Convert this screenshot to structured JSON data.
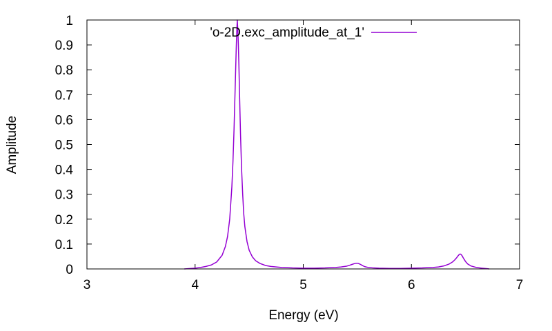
{
  "chart_data": {
    "type": "line",
    "title": "",
    "xlabel": "Energy (eV)",
    "ylabel": "Amplitude",
    "xlim": [
      3,
      7
    ],
    "ylim": [
      0,
      1
    ],
    "x_ticks": [
      3,
      4,
      5,
      6,
      7
    ],
    "y_ticks": [
      0,
      0.1,
      0.2,
      0.3,
      0.4,
      0.5,
      0.6,
      0.7,
      0.8,
      0.9,
      1
    ],
    "x_tick_labels": [
      "3",
      "4",
      "5",
      "6",
      "7"
    ],
    "y_tick_labels": [
      "0",
      "0.1",
      "0.2",
      "0.3",
      "0.4",
      "0.5",
      "0.6",
      "0.7",
      "0.8",
      "0.9",
      "1"
    ],
    "grid": false,
    "legend_position": "top-right",
    "series": [
      {
        "name": "'o-2D.exc_amplitude_at_1'",
        "color": "#9400d3",
        "x": [
          3.9,
          4.0,
          4.05,
          4.1,
          4.15,
          4.2,
          4.25,
          4.28,
          4.3,
          4.32,
          4.34,
          4.35,
          4.36,
          4.37,
          4.38,
          4.385,
          4.39,
          4.395,
          4.4,
          4.405,
          4.41,
          4.42,
          4.43,
          4.44,
          4.45,
          4.46,
          4.48,
          4.5,
          4.53,
          4.56,
          4.6,
          4.65,
          4.7,
          4.8,
          4.9,
          5.0,
          5.1,
          5.2,
          5.3,
          5.35,
          5.4,
          5.43,
          5.45,
          5.47,
          5.49,
          5.5,
          5.51,
          5.53,
          5.55,
          5.57,
          5.6,
          5.65,
          5.7,
          5.8,
          5.9,
          6.0,
          6.1,
          6.2,
          6.25,
          6.3,
          6.35,
          6.38,
          6.4,
          6.42,
          6.43,
          6.44,
          6.45,
          6.46,
          6.47,
          6.48,
          6.5,
          6.52,
          6.55,
          6.6,
          6.65,
          6.7,
          6.72
        ],
        "y": [
          0.0,
          0.003,
          0.006,
          0.01,
          0.016,
          0.028,
          0.055,
          0.09,
          0.13,
          0.2,
          0.33,
          0.43,
          0.56,
          0.72,
          0.88,
          0.95,
          1.0,
          0.96,
          0.9,
          0.82,
          0.72,
          0.54,
          0.4,
          0.3,
          0.22,
          0.17,
          0.11,
          0.075,
          0.048,
          0.033,
          0.022,
          0.014,
          0.01,
          0.006,
          0.004,
          0.003,
          0.003,
          0.004,
          0.006,
          0.008,
          0.011,
          0.015,
          0.018,
          0.021,
          0.023,
          0.023,
          0.022,
          0.018,
          0.013,
          0.009,
          0.006,
          0.004,
          0.003,
          0.002,
          0.002,
          0.003,
          0.004,
          0.006,
          0.008,
          0.012,
          0.02,
          0.028,
          0.036,
          0.046,
          0.052,
          0.057,
          0.06,
          0.058,
          0.052,
          0.044,
          0.03,
          0.02,
          0.012,
          0.006,
          0.003,
          0.001,
          0.0
        ]
      }
    ]
  }
}
